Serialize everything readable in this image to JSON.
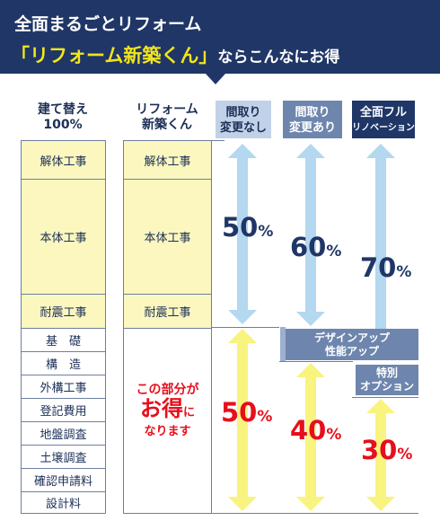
{
  "banner": {
    "line1": "全面まるごとリフォーム",
    "highlight": "「リフォーム新築くん」",
    "line2_rest": "ならこんなにお得"
  },
  "headers": {
    "rebuild": [
      "建て替え",
      "100%"
    ],
    "reform": [
      "リフォーム",
      "新築くん"
    ],
    "option1": [
      "間取り",
      "変更なし"
    ],
    "option2": [
      "間取り",
      "変更あり"
    ],
    "option3": [
      "全面フル",
      "リノベーション"
    ]
  },
  "rebuild_items": [
    "解体工事",
    "本体工事",
    "耐震工事",
    "基　礎",
    "構　造",
    "外構工事",
    "登記費用",
    "地盤調査",
    "土壌調査",
    "確認申請料",
    "設計料"
  ],
  "reform_items": [
    "解体工事",
    "本体工事",
    "耐震工事"
  ],
  "savings_text": {
    "line1": "この部分が",
    "line2_big": "お得",
    "line2_small": "に",
    "line3": "なります"
  },
  "options": [
    {
      "cost_pct": 50,
      "saving_pct": 50
    },
    {
      "cost_pct": 60,
      "saving_pct": 40
    },
    {
      "cost_pct": 70,
      "saving_pct": 30
    }
  ],
  "percent_sign": "%",
  "tags": {
    "design_up": [
      "デザインアップ",
      "性能アップ"
    ],
    "special_option": [
      "特別",
      "オプション"
    ]
  },
  "colors": {
    "navy": "#1f3667",
    "cost_arrow": "#b3d8f0",
    "saving_arrow": "#f9f37f",
    "saving_text": "#e60f1c",
    "cell_yellow": "#fbf7bf"
  }
}
